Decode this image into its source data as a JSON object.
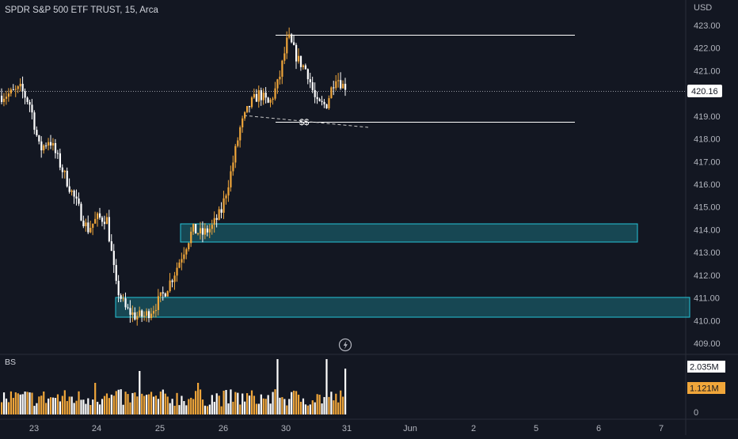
{
  "header": {
    "title": "SPDR S&P 500 ETF TRUST, 15, Arca"
  },
  "price_axis": {
    "currency": "USD",
    "ticks": [
      "423.00",
      "422.00",
      "421.00",
      "420.00",
      "419.00",
      "418.00",
      "417.00",
      "416.00",
      "415.00",
      "414.00",
      "413.00",
      "412.00",
      "411.00",
      "410.00",
      "409.00"
    ],
    "last_price": "420.16"
  },
  "volume_pane": {
    "label": "BS",
    "badge_high": "2.035M",
    "badge_low": "1.121M",
    "zero": "0"
  },
  "time_axis": {
    "labels": [
      "23",
      "24",
      "25",
      "26",
      "30",
      "31",
      "Jun",
      "2",
      "5",
      "6",
      "7"
    ]
  },
  "annotations": {
    "liquidity_label": "$$"
  },
  "colors": {
    "background": "#131722",
    "up": "#f0a63a",
    "down": "#ffffff",
    "zone": "#1c6f7c",
    "zone_border": "#26c6da",
    "text": "#d1d4dc"
  },
  "chart_data": {
    "type": "candlestick",
    "title": "SPDR S&P 500 ETF TRUST, 15, Arca",
    "ylim": [
      408.6,
      423.8
    ],
    "ylabel": "USD",
    "last_price": 420.16,
    "x_labels": [
      "23",
      "24",
      "25",
      "26",
      "30",
      "31",
      "Jun",
      "2",
      "5",
      "6",
      "7"
    ],
    "resistance_line": 422.6,
    "support_line": 418.75,
    "demand_zones": [
      [
        413.45,
        414.3
      ],
      [
        410.15,
        411.0
      ]
    ],
    "close_series": [
      419.9,
      420.0,
      420.2,
      419.5,
      417.5,
      418.0,
      417.0,
      416.0,
      415.0,
      414.0,
      414.5,
      414.5,
      411.5,
      410.5,
      410.2,
      410.2,
      410.6,
      411.2,
      412.0,
      413.0,
      414.0,
      413.8,
      414.1,
      414.8,
      416.5,
      418.5,
      419.5,
      420.0,
      419.5,
      420.5,
      422.5,
      421.5,
      421.0,
      419.5,
      419.5,
      420.8,
      420.2
    ],
    "volume_peak_labels": [
      "2.035M",
      "1.121M"
    ]
  }
}
